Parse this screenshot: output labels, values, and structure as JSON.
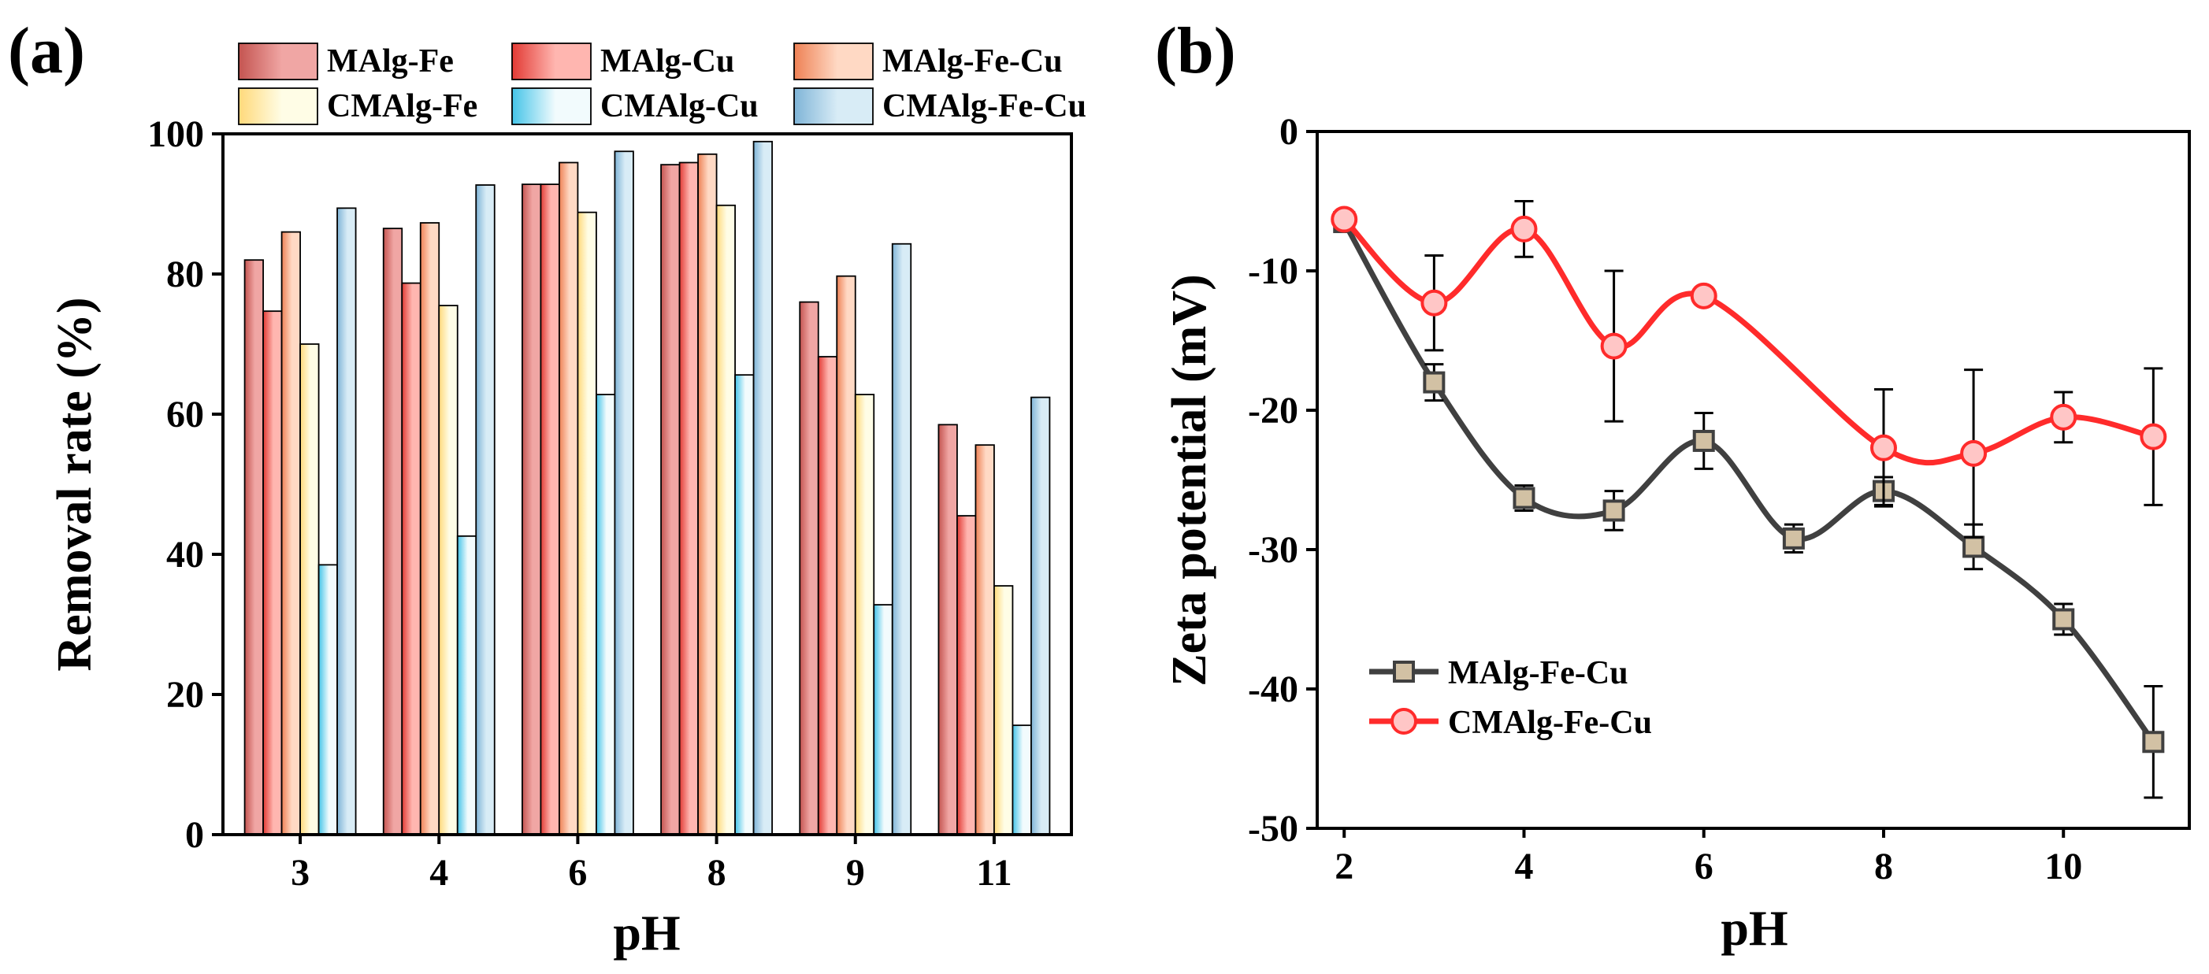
{
  "panel_labels": {
    "a": "(a)",
    "b": "(b)"
  },
  "colors": {
    "MAlg-Fe": [
      "#f0a6a4",
      "#c45450"
    ],
    "MAlg-Cu": [
      "#ffb6b0",
      "#e23a34"
    ],
    "MAlg-Fe-Cu": [
      "#ffd9c4",
      "#ee8155"
    ],
    "CMAlg-Fe": [
      "#fffde6",
      "#ffd97a"
    ],
    "CMAlg-Cu": [
      "#f2fbfd",
      "#44c4e8"
    ],
    "CMAlg-Fe-Cu": [
      "#d8ecf6",
      "#7fb4d7"
    ],
    "line_MAlg-Fe-Cu": "#404040",
    "marker_MAlg-Fe-Cu": "#d2c1a4",
    "line_CMAlg-Fe-Cu": "#ff2b2b",
    "marker_CMAlg-Fe-Cu": "#ffc6c6"
  },
  "chart_data": [
    {
      "type": "bar",
      "panel": "(a)",
      "xlabel": "pH",
      "ylabel": "Removal rate (%)",
      "ylim": [
        0,
        100
      ],
      "yticks": [
        0,
        20,
        40,
        60,
        80,
        100
      ],
      "categories": [
        "3",
        "4",
        "6",
        "8",
        "9",
        "11"
      ],
      "legend_position": "top",
      "series": [
        {
          "name": "MAlg-Fe",
          "values": [
            82,
            86.5,
            92.8,
            95.6,
            76,
            58.5
          ]
        },
        {
          "name": "MAlg-Cu",
          "values": [
            74.7,
            78.7,
            92.8,
            95.9,
            68.2,
            45.5
          ]
        },
        {
          "name": "MAlg-Fe-Cu",
          "values": [
            86,
            87.3,
            95.9,
            97.1,
            79.7,
            55.6
          ]
        },
        {
          "name": "CMAlg-Fe",
          "values": [
            70,
            75.5,
            88.8,
            89.8,
            62.8,
            35.5
          ]
        },
        {
          "name": "CMAlg-Cu",
          "values": [
            38.5,
            42.6,
            62.8,
            65.6,
            32.8,
            15.6
          ]
        },
        {
          "name": "CMAlg-Fe-Cu",
          "values": [
            89.4,
            92.7,
            97.5,
            98.9,
            84.3,
            62.4
          ]
        }
      ]
    },
    {
      "type": "line",
      "panel": "(b)",
      "xlabel": "pH",
      "ylabel": "Zeta potential (mV)",
      "xlim": [
        1.7,
        11.4
      ],
      "ylim": [
        -50,
        0
      ],
      "xticks": [
        2,
        4,
        6,
        8,
        10
      ],
      "yticks": [
        0,
        -10,
        -20,
        -30,
        -40,
        -50
      ],
      "legend_position": "bottom-left",
      "series": [
        {
          "name": "MAlg-Fe-Cu",
          "marker": "square",
          "x": [
            2,
            3,
            4,
            5,
            6,
            7,
            8,
            9,
            10,
            11
          ],
          "y": [
            -6.5,
            -18,
            -26.3,
            -27.2,
            -22.2,
            -29.2,
            -25.8,
            -29.8,
            -35,
            -43.8
          ],
          "err": [
            0.5,
            1.3,
            0.9,
            1.4,
            2.0,
            1.0,
            1.0,
            1.6,
            1.1,
            4.0
          ]
        },
        {
          "name": "CMAlg-Fe-Cu",
          "marker": "circle",
          "x": [
            2,
            3,
            4,
            5,
            6,
            8,
            9,
            10,
            11
          ],
          "y": [
            -6.3,
            -12.3,
            -7,
            -15.4,
            -11.8,
            -22.7,
            -23.1,
            -20.5,
            -21.9
          ],
          "err": [
            0.6,
            3.4,
            2.0,
            5.4,
            0.6,
            4.2,
            6.0,
            1.8,
            4.9
          ]
        }
      ]
    }
  ]
}
